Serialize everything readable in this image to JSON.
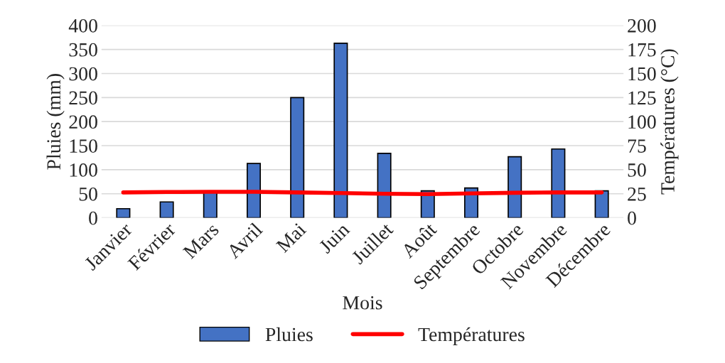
{
  "chart_data": {
    "type": "bar",
    "xlabel": "Mois",
    "ylabel": "Pluies (mm)",
    "y2label": "Températures (°C)",
    "categories": [
      "Janvier",
      "Février",
      "Mars",
      "Avril",
      "Mai",
      "Juin",
      "Juillet",
      "Août",
      "Septembre",
      "Octobre",
      "Novembre",
      "Décembre"
    ],
    "series": [
      {
        "name": "Pluies",
        "color": "#4472c4",
        "values": [
          19,
          33,
          54,
          113,
          250,
          363,
          134,
          56,
          62,
          127,
          143,
          56
        ]
      },
      {
        "name": "Températures",
        "type": "line",
        "axis": "y2",
        "color": "#ff0000",
        "values": [
          26.4,
          26.8,
          27,
          27,
          26.4,
          25.7,
          25,
          24.6,
          25.3,
          26,
          26.4,
          26.4
        ]
      }
    ],
    "ylim": [
      0,
      400
    ],
    "yticks": [
      0,
      50,
      100,
      150,
      200,
      250,
      300,
      350,
      400
    ],
    "y2lim": [
      0,
      200
    ],
    "y2ticks": [
      0,
      25,
      50,
      75,
      100,
      125,
      150,
      175,
      200
    ],
    "grid": "y",
    "legend": "bottom"
  }
}
